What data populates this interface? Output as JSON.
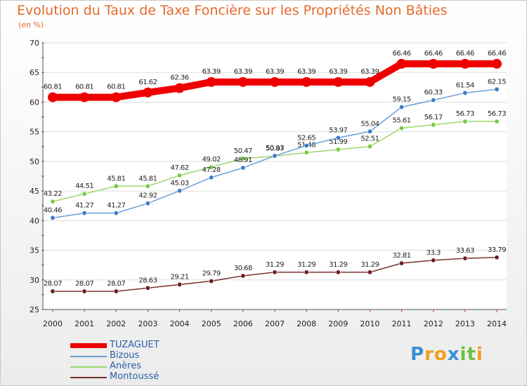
{
  "chart_data": {
    "type": "line",
    "title": "Evolution du Taux de Taxe Foncière sur les Propriétés Non Bâties",
    "ylabel": "(en %)",
    "ylim": [
      25,
      70
    ],
    "yticks": [
      25,
      30,
      35,
      40,
      45,
      50,
      55,
      60,
      65,
      70
    ],
    "x": [
      "2000",
      "2001",
      "2002",
      "2003",
      "2004",
      "2005",
      "2006",
      "2007",
      "2008",
      "2009",
      "2010",
      "2011",
      "2012",
      "2013",
      "2014"
    ],
    "series": [
      {
        "name": "TUZAGUET",
        "color": "#ee0000",
        "highlight": true,
        "values": [
          60.81,
          60.81,
          60.81,
          61.62,
          62.36,
          63.39,
          63.39,
          63.39,
          63.39,
          63.39,
          63.39,
          66.46,
          66.46,
          66.46,
          66.46
        ],
        "labels": [
          "60.81",
          "60.81",
          "60.81",
          "61.62",
          "62.36",
          "63.39",
          "63.39",
          "63.39",
          "63.39",
          "63.39",
          "63.39",
          "66.46",
          "66.46",
          "66.46",
          "66.46"
        ]
      },
      {
        "name": "Bizous",
        "color": "#6a9fd4",
        "marker": "#3a7bc8",
        "values": [
          40.46,
          41.27,
          41.27,
          42.92,
          45.03,
          47.28,
          48.91,
          50.93,
          52.65,
          53.97,
          55.04,
          59.15,
          60.33,
          61.54,
          62.15
        ],
        "labels": [
          "40.46",
          "41.27",
          "41.27",
          "42.92",
          "45.03",
          "47.28",
          "48.91",
          "50.93",
          "52.65",
          "53.97",
          "55.04",
          "59.15",
          "60.33",
          "61.54",
          "62.15"
        ]
      },
      {
        "name": "Anères",
        "color": "#9ad86a",
        "marker": "#77c944",
        "values": [
          43.22,
          44.51,
          45.81,
          45.81,
          47.62,
          49.02,
          50.47,
          50.87,
          51.48,
          51.99,
          52.51,
          55.61,
          56.17,
          56.73,
          56.73
        ],
        "labels": [
          "43.22",
          "44.51",
          "45.81",
          "45.81",
          "47.62",
          "49.02",
          "50.47",
          "50.87",
          "51.48",
          "51.99",
          "52.51",
          "55.61",
          "56.17",
          "56.73",
          "56.73"
        ]
      },
      {
        "name": "Montoussé",
        "color": "#7a3030",
        "marker": "#6b1f1f",
        "values": [
          28.07,
          28.07,
          28.07,
          28.63,
          29.21,
          29.79,
          30.68,
          31.29,
          31.29,
          31.29,
          31.29,
          32.81,
          33.3,
          33.63,
          33.79
        ],
        "labels": [
          "28.07",
          "28.07",
          "28.07",
          "28.63",
          "29.21",
          "29.79",
          "30.68",
          "31.29",
          "31.29",
          "31.29",
          "31.29",
          "32.81",
          "33.3",
          "33.63",
          "33.79"
        ]
      }
    ]
  },
  "logo": {
    "letters": [
      "P",
      "r",
      "o",
      "x",
      "i",
      "t",
      "i"
    ],
    "colors": [
      "#3a8fd6",
      "#f0a020",
      "#f0a020",
      "#3a8fd6",
      "#6cc040",
      "#6cc040",
      "#f0a020"
    ]
  }
}
